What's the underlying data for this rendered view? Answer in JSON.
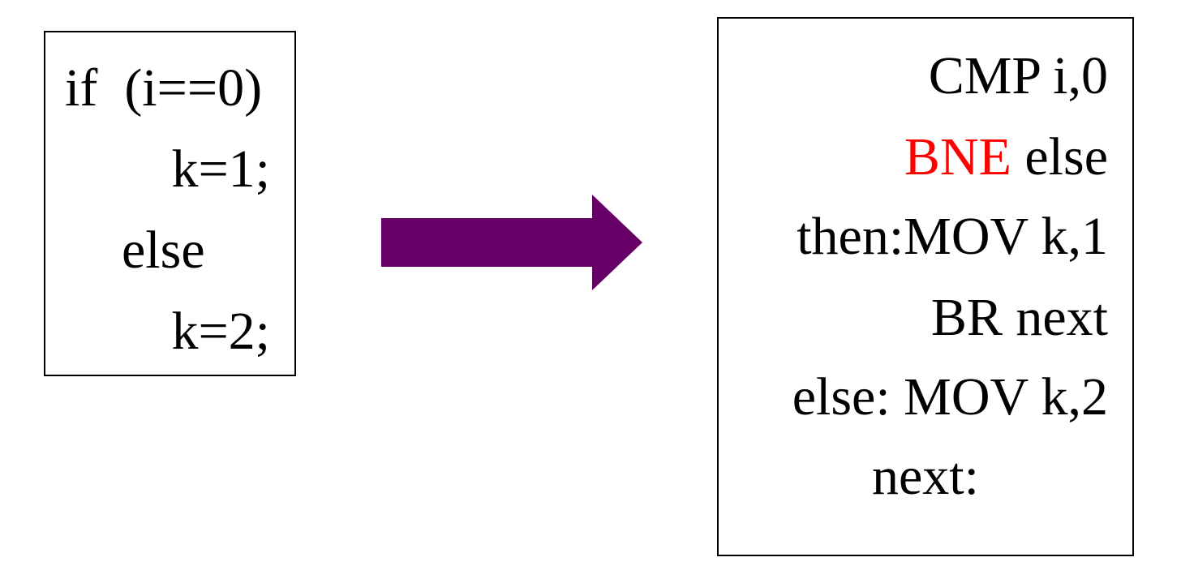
{
  "source_code": {
    "lines": [
      "if  (i==0)",
      "k=1;",
      "else",
      "k=2;"
    ]
  },
  "assembly_code": {
    "line1": "CMP i,0",
    "line2_opcode": "BNE",
    "line2_operand": " else",
    "line3": "then:MOV k,1",
    "line4": "BR next",
    "line5": "else: MOV k,2",
    "line6": "next:"
  },
  "colors": {
    "arrow": "#660066",
    "highlight": "#ff0000",
    "text": "#000000",
    "border": "#000000"
  }
}
